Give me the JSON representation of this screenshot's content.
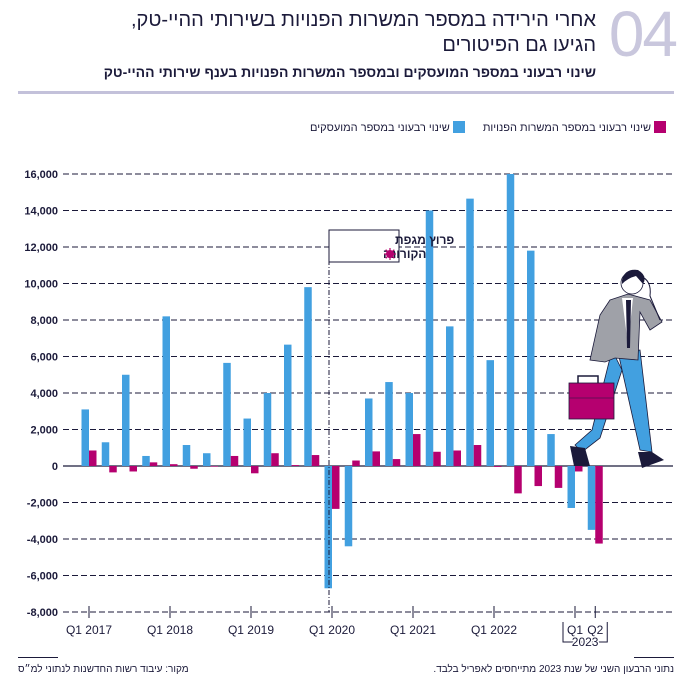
{
  "header": {
    "number": "04",
    "title_line1": "אחרי הירידה במספר המשרות הפנויות בשירותי ההיי-טק,",
    "title_line2": "הגיעו גם הפיטורים",
    "subtitle": "שינוי רבעוני במספר המועסקים ובמספר המשרות הפנויות בענף שירותי ההיי-טק"
  },
  "colors": {
    "employees": "#42a0e0",
    "openings": "#b5006f",
    "title": "#1b1a3a",
    "accent_number": "#c9c7dd"
  },
  "annotation": {
    "line1": "פרוץ מגפת",
    "line2": "הקורונה",
    "icon": "virus-icon",
    "at_quarter": "Q1 2020"
  },
  "chart_data": {
    "type": "bar",
    "ylim": [
      -8000,
      16000
    ],
    "yticks": [
      16000,
      14000,
      12000,
      10000,
      8000,
      6000,
      4000,
      2000,
      0,
      -2000,
      -4000,
      -6000,
      -8000
    ],
    "ytick_labels": [
      "16,000",
      "14,000",
      "12,000",
      "10,000",
      "8,000",
      "6,000",
      "4,000",
      "2,000",
      "0",
      "-2,000",
      "-4,000",
      "-6,000",
      "-8,000"
    ],
    "grid": true,
    "legend_placement": "top-right",
    "categories": [
      "Q1 2017",
      "Q2 2017",
      "Q3 2017",
      "Q4 2017",
      "Q1 2018",
      "Q2 2018",
      "Q3 2018",
      "Q4 2018",
      "Q1 2019",
      "Q2 2019",
      "Q3 2019",
      "Q4 2019",
      "Q1 2020",
      "Q2 2020",
      "Q3 2020",
      "Q4 2020",
      "Q1 2021",
      "Q2 2021",
      "Q3 2021",
      "Q4 2021",
      "Q1 2022",
      "Q2 2022",
      "Q3 2022",
      "Q4 2022",
      "Q1 2023",
      "Q2 2023"
    ],
    "xtick_labels": [
      {
        "index": 0,
        "label": "Q1 2017"
      },
      {
        "index": 4,
        "label": "Q1 2018"
      },
      {
        "index": 8,
        "label": "Q1 2019"
      },
      {
        "index": 12,
        "label": "Q1 2020"
      },
      {
        "index": 16,
        "label": "Q1 2021"
      },
      {
        "index": 20,
        "label": "Q1 2022"
      },
      {
        "index": 24,
        "label": "Q1"
      },
      {
        "index": 25,
        "label": "Q2"
      }
    ],
    "xgroup_label": "2023",
    "series": [
      {
        "name": "שינוי רבעוני במספר המועסקים",
        "color": "#42a0e0",
        "values": [
          3100,
          1300,
          5000,
          550,
          8200,
          1150,
          700,
          5650,
          2600,
          4000,
          6650,
          9800,
          -6700,
          -4400,
          3700,
          4600,
          4000,
          14000,
          7650,
          14650,
          5800,
          16000,
          11800,
          1750,
          -2300,
          -3500
        ]
      },
      {
        "name": "שינוי רבעוני במספר המשרות הפנויות",
        "color": "#b5006f",
        "values": [
          850,
          -350,
          -300,
          200,
          100,
          -150,
          0,
          550,
          -400,
          700,
          50,
          600,
          -2350,
          300,
          800,
          380,
          1750,
          780,
          850,
          1150,
          -50,
          -1500,
          -1100,
          -1200,
          -300,
          -4250
        ]
      }
    ]
  },
  "footer": {
    "note": "נתוני הרבעון השני של שנת 2023 מתייחסים לאפריל בלבד.",
    "source": "מקור: עיבוד רשות החדשנות לנתוני למ״ס"
  }
}
